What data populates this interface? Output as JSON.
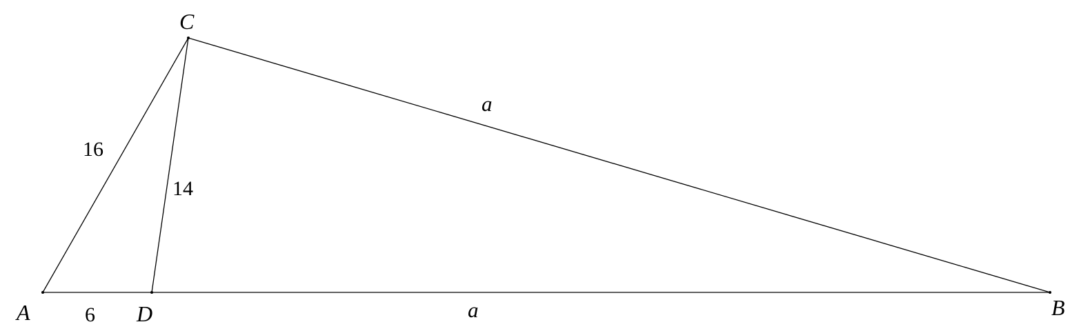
{
  "vertices": {
    "A": "A",
    "B": "B",
    "C": "C",
    "D": "D"
  },
  "segments": {
    "AC": "16",
    "CD": "14",
    "AD": "6",
    "CB": "a",
    "DB": "a"
  }
}
